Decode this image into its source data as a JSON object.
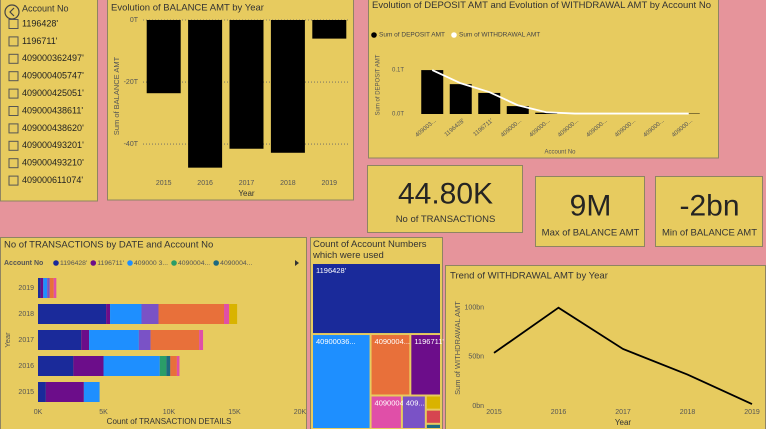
{
  "slicer": {
    "title": "Account No",
    "items": [
      "1196428'",
      "1196711'",
      "409000362497'",
      "409000405747'",
      "409000425051'",
      "409000438611'",
      "409000438620'",
      "409000493201'",
      "409000493210'",
      "409000611074'"
    ]
  },
  "cards": [
    {
      "value": "44.80K",
      "label": "No of TRANSACTIONS"
    },
    {
      "value": "9M",
      "label": "Max of BALANCE AMT"
    },
    {
      "value": "-2bn",
      "label": "Min of BALANCE AMT"
    }
  ],
  "chart_data": [
    {
      "type": "bar",
      "title": "Evolution of BALANCE AMT by Year",
      "xlabel": "Year",
      "ylabel": "Sum of BALANCE AMT",
      "categories": [
        "2015",
        "2016",
        "2017",
        "2018",
        "2019"
      ],
      "values": [
        -23.6,
        -47.6,
        -41.5,
        -42.8,
        -6
      ],
      "color": "#000000",
      "ylim": [
        -49,
        0
      ],
      "yticks": [
        {
          "value": 0,
          "label": "0T"
        },
        {
          "value": -20,
          "label": "-20T"
        },
        {
          "value": -40,
          "label": "-40T"
        }
      ],
      "grid": true
    },
    {
      "type": "combo",
      "title": "Evolution of DEPOSIT AMT and Evolution of WITHDRAWAL AMT by Account No",
      "xlabel": "Account No",
      "ylabel": "Sum of DEPOSIT AMT",
      "categories": [
        "409003...",
        "1196428'",
        "1196711'",
        "409000...",
        "409000...",
        "409000...",
        "409000...",
        "409000...",
        "409000...",
        "409000..."
      ],
      "series": [
        {
          "name": "Sum of DEPOSIT AMT",
          "kind": "bar",
          "color": "#000000",
          "values": [
            0.1,
            0.068,
            0.048,
            0.018,
            0.003,
            0.001,
            0.001,
            0.001,
            0.001,
            0.001
          ]
        },
        {
          "name": "Sum of WITHDRAWAL AMT",
          "kind": "line",
          "color": "#ffffff",
          "values": [
            0.1,
            0.07,
            0.05,
            0.02,
            0.004,
            0.001,
            0.001,
            0.001,
            0.001,
            0.001
          ]
        }
      ],
      "ylim": [
        0,
        0.123
      ],
      "yticks": [
        {
          "value": 0,
          "label": "0.0T"
        },
        {
          "value": 0.1,
          "label": "0.1T"
        }
      ]
    },
    {
      "type": "stacked-hbar",
      "title": "No of TRANSACTIONS by DATE and Account No",
      "legend_title": "Account No",
      "xlabel": "Count of TRANSACTION DETAILS",
      "ylabel": "Year",
      "categories": [
        "2019",
        "2018",
        "2017",
        "2016",
        "2015"
      ],
      "series": [
        {
          "name": "1196428'",
          "color": "#1a2a9a",
          "values": [
            0.2,
            5.2,
            3.3,
            2.7,
            0.6
          ]
        },
        {
          "name": "1196711'",
          "color": "#6c0d8a",
          "values": [
            0.2,
            0.3,
            0.6,
            2.3,
            2.9
          ]
        },
        {
          "name": "409000 3...",
          "color": "#1e8fff",
          "values": [
            0.3,
            2.4,
            3.8,
            4.3,
            1.2
          ]
        },
        {
          "name": "4090004...",
          "color": "#2a9d68",
          "values": [
            0,
            0,
            0,
            0.5,
            0
          ]
        },
        {
          "name": "4090004...",
          "color": "#1d6a80",
          "values": [
            0,
            0,
            0,
            0.3,
            0
          ]
        },
        {
          "name": null,
          "color": "#7a52c6",
          "values": [
            0.2,
            1.3,
            0.9,
            0,
            0
          ]
        },
        {
          "name": null,
          "color": "#e8703a",
          "values": [
            0.3,
            5.0,
            3.7,
            0.5,
            0
          ]
        },
        {
          "name": null,
          "color": "#e04fa8",
          "values": [
            0.2,
            0.4,
            0.3,
            0.2,
            0
          ]
        },
        {
          "name": null,
          "color": "#d9b300",
          "values": [
            0,
            0.6,
            0,
            0,
            0
          ]
        }
      ],
      "xlim": [
        0,
        20
      ],
      "xticks": [
        {
          "value": 0,
          "label": "0K"
        },
        {
          "value": 5,
          "label": "5K"
        },
        {
          "value": 10,
          "label": "10K"
        },
        {
          "value": 15,
          "label": "15K"
        },
        {
          "value": 20,
          "label": "20K"
        }
      ]
    },
    {
      "type": "treemap",
      "title": "Count of Account Numbers which were used",
      "categories": [
        "1196428'",
        "40900036...",
        "4090004...",
        "1196711'",
        "4090004932...",
        "409...",
        null,
        null,
        null
      ],
      "values": [
        19200,
        11650,
        5120,
        3950,
        2200,
        1680,
        450,
        450,
        165
      ],
      "colors": [
        "#1a2a9a",
        "#1e8fff",
        "#e8703a",
        "#6c0d8a",
        "#e04fa8",
        "#7a52c6",
        "#d9b300",
        "#d64550",
        "#1d6a80"
      ]
    },
    {
      "type": "line",
      "title": "Trend of WITHDRAWAL AMT by Year",
      "xlabel": "Year",
      "ylabel": "Sum of WITHDRAWAL AMT",
      "categories": [
        "2015",
        "2016",
        "2017",
        "2018",
        "2019"
      ],
      "values": [
        54,
        100,
        58,
        32,
        2
      ],
      "color": "#000000",
      "ylim": [
        0,
        118
      ],
      "yticks": [
        {
          "value": 0,
          "label": "0bn"
        },
        {
          "value": 50,
          "label": "50bn"
        },
        {
          "value": 100,
          "label": "100bn"
        }
      ]
    }
  ]
}
